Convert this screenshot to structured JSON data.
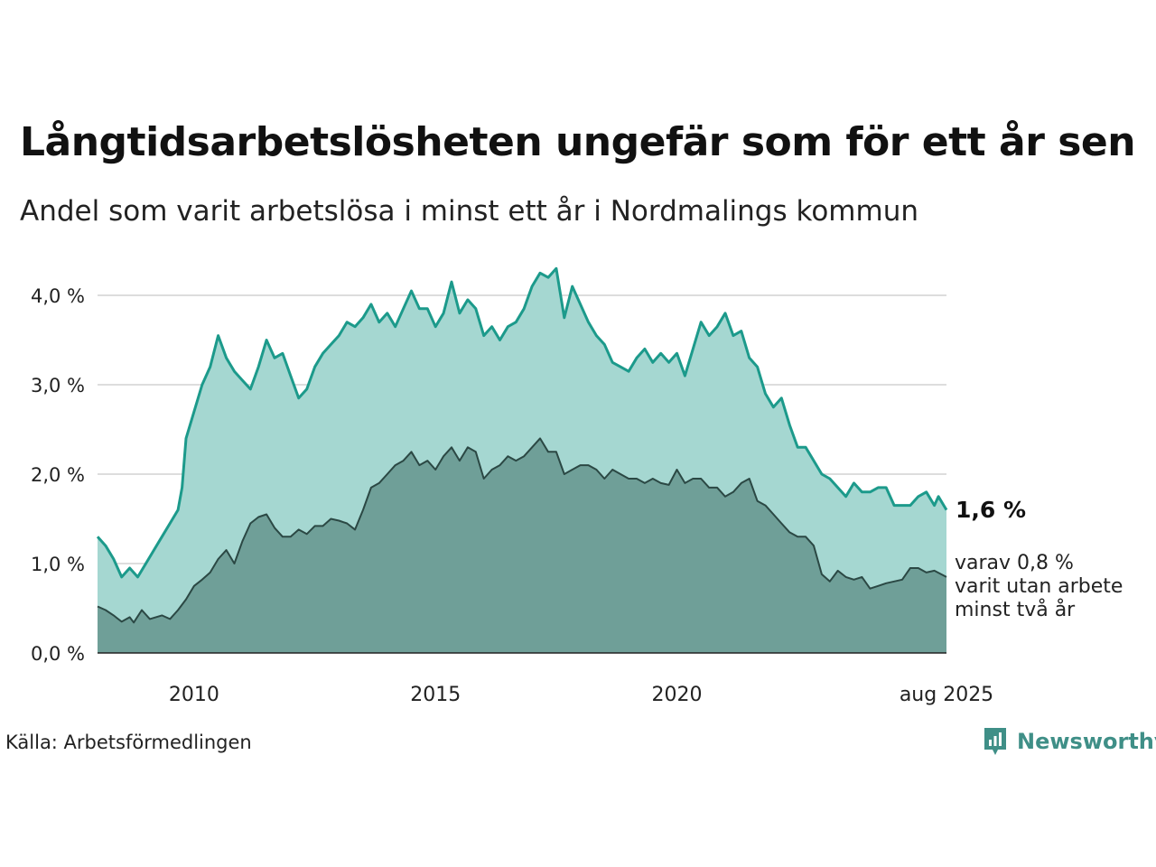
{
  "title": "Långtidsarbetslösheten ungefär som för ett år sen",
  "subtitle": "Andel som varit arbetslösa i minst ett år i Nordmalings kommun",
  "source": "Källa: Arbetsförmedlingen",
  "brand": "Newsworthy",
  "colors": {
    "area_light": "#a5d7d1",
    "line_light": "#1c9a8b",
    "area_dark": "#6f9f98",
    "line_dark": "#2b4844",
    "grid": "#dddddd"
  },
  "chart_data": {
    "type": "area",
    "x_unit": "date",
    "x_range": [
      "2008-01",
      "2025-08"
    ],
    "ylim": [
      0,
      4.3
    ],
    "yticks": [
      0,
      1,
      2,
      3,
      4
    ],
    "ytick_labels": [
      "0,0 %",
      "1,0 %",
      "2,0 %",
      "3,0 %",
      "4,0 %"
    ],
    "xticks": [
      {
        "date": "2010-01",
        "label": "2010"
      },
      {
        "date": "2015-01",
        "label": "2015"
      },
      {
        "date": "2020-01",
        "label": "2020"
      },
      {
        "date": "2025-08",
        "label": "aug 2025"
      }
    ],
    "grid": true,
    "end_label": "1,6 %",
    "end_note": [
      "varav 0,8 %",
      "varit utan arbete",
      "minst två år"
    ],
    "series": [
      {
        "key": "min1yr",
        "points": [
          [
            "2008-01",
            1.3
          ],
          [
            "2008-03",
            1.2
          ],
          [
            "2008-05",
            1.05
          ],
          [
            "2008-07",
            0.85
          ],
          [
            "2008-09",
            0.95
          ],
          [
            "2008-11",
            0.85
          ],
          [
            "2009-01",
            1.0
          ],
          [
            "2009-03",
            1.15
          ],
          [
            "2009-05",
            1.3
          ],
          [
            "2009-07",
            1.45
          ],
          [
            "2009-09",
            1.6
          ],
          [
            "2009-10",
            1.85
          ],
          [
            "2009-11",
            2.4
          ],
          [
            "2010-01",
            2.7
          ],
          [
            "2010-03",
            3.0
          ],
          [
            "2010-05",
            3.2
          ],
          [
            "2010-07",
            3.55
          ],
          [
            "2010-09",
            3.3
          ],
          [
            "2010-11",
            3.15
          ],
          [
            "2011-01",
            3.05
          ],
          [
            "2011-03",
            2.95
          ],
          [
            "2011-05",
            3.2
          ],
          [
            "2011-07",
            3.5
          ],
          [
            "2011-09",
            3.3
          ],
          [
            "2011-11",
            3.35
          ],
          [
            "2012-01",
            3.1
          ],
          [
            "2012-03",
            2.85
          ],
          [
            "2012-05",
            2.95
          ],
          [
            "2012-07",
            3.2
          ],
          [
            "2012-09",
            3.35
          ],
          [
            "2012-11",
            3.45
          ],
          [
            "2013-01",
            3.55
          ],
          [
            "2013-03",
            3.7
          ],
          [
            "2013-05",
            3.65
          ],
          [
            "2013-07",
            3.75
          ],
          [
            "2013-09",
            3.9
          ],
          [
            "2013-11",
            3.7
          ],
          [
            "2014-01",
            3.8
          ],
          [
            "2014-03",
            3.65
          ],
          [
            "2014-05",
            3.85
          ],
          [
            "2014-07",
            4.05
          ],
          [
            "2014-09",
            3.85
          ],
          [
            "2014-11",
            3.85
          ],
          [
            "2015-01",
            3.65
          ],
          [
            "2015-03",
            3.8
          ],
          [
            "2015-05",
            4.15
          ],
          [
            "2015-07",
            3.8
          ],
          [
            "2015-09",
            3.95
          ],
          [
            "2015-11",
            3.85
          ],
          [
            "2016-01",
            3.55
          ],
          [
            "2016-03",
            3.65
          ],
          [
            "2016-05",
            3.5
          ],
          [
            "2016-07",
            3.65
          ],
          [
            "2016-09",
            3.7
          ],
          [
            "2016-11",
            3.85
          ],
          [
            "2017-01",
            4.1
          ],
          [
            "2017-03",
            4.25
          ],
          [
            "2017-05",
            4.2
          ],
          [
            "2017-07",
            4.3
          ],
          [
            "2017-09",
            3.75
          ],
          [
            "2017-11",
            4.1
          ],
          [
            "2018-01",
            3.9
          ],
          [
            "2018-03",
            3.7
          ],
          [
            "2018-05",
            3.55
          ],
          [
            "2018-07",
            3.45
          ],
          [
            "2018-09",
            3.25
          ],
          [
            "2018-11",
            3.2
          ],
          [
            "2019-01",
            3.15
          ],
          [
            "2019-03",
            3.3
          ],
          [
            "2019-05",
            3.4
          ],
          [
            "2019-07",
            3.25
          ],
          [
            "2019-09",
            3.35
          ],
          [
            "2019-11",
            3.25
          ],
          [
            "2020-01",
            3.35
          ],
          [
            "2020-03",
            3.1
          ],
          [
            "2020-05",
            3.4
          ],
          [
            "2020-07",
            3.7
          ],
          [
            "2020-09",
            3.55
          ],
          [
            "2020-11",
            3.65
          ],
          [
            "2021-01",
            3.8
          ],
          [
            "2021-03",
            3.55
          ],
          [
            "2021-05",
            3.6
          ],
          [
            "2021-07",
            3.3
          ],
          [
            "2021-09",
            3.2
          ],
          [
            "2021-11",
            2.9
          ],
          [
            "2022-01",
            2.75
          ],
          [
            "2022-03",
            2.85
          ],
          [
            "2022-05",
            2.55
          ],
          [
            "2022-07",
            2.3
          ],
          [
            "2022-09",
            2.3
          ],
          [
            "2022-11",
            2.15
          ],
          [
            "2023-01",
            2.0
          ],
          [
            "2023-03",
            1.95
          ],
          [
            "2023-05",
            1.85
          ],
          [
            "2023-07",
            1.75
          ],
          [
            "2023-09",
            1.9
          ],
          [
            "2023-11",
            1.8
          ],
          [
            "2024-01",
            1.8
          ],
          [
            "2024-03",
            1.85
          ],
          [
            "2024-05",
            1.85
          ],
          [
            "2024-07",
            1.65
          ],
          [
            "2024-09",
            1.65
          ],
          [
            "2024-11",
            1.65
          ],
          [
            "2025-01",
            1.75
          ],
          [
            "2025-03",
            1.8
          ],
          [
            "2025-05",
            1.65
          ],
          [
            "2025-06",
            1.75
          ],
          [
            "2025-08",
            1.6
          ]
        ]
      },
      {
        "key": "min2yr",
        "points": [
          [
            "2008-01",
            0.52
          ],
          [
            "2008-03",
            0.48
          ],
          [
            "2008-05",
            0.42
          ],
          [
            "2008-07",
            0.35
          ],
          [
            "2008-09",
            0.4
          ],
          [
            "2008-10",
            0.34
          ],
          [
            "2008-12",
            0.48
          ],
          [
            "2009-02",
            0.38
          ],
          [
            "2009-05",
            0.42
          ],
          [
            "2009-07",
            0.38
          ],
          [
            "2009-09",
            0.48
          ],
          [
            "2009-11",
            0.6
          ],
          [
            "2010-01",
            0.75
          ],
          [
            "2010-03",
            0.82
          ],
          [
            "2010-05",
            0.9
          ],
          [
            "2010-07",
            1.05
          ],
          [
            "2010-09",
            1.15
          ],
          [
            "2010-11",
            1.0
          ],
          [
            "2011-01",
            1.25
          ],
          [
            "2011-03",
            1.45
          ],
          [
            "2011-05",
            1.52
          ],
          [
            "2011-07",
            1.55
          ],
          [
            "2011-09",
            1.4
          ],
          [
            "2011-11",
            1.3
          ],
          [
            "2012-01",
            1.3
          ],
          [
            "2012-03",
            1.38
          ],
          [
            "2012-05",
            1.33
          ],
          [
            "2012-07",
            1.42
          ],
          [
            "2012-09",
            1.42
          ],
          [
            "2012-11",
            1.5
          ],
          [
            "2013-01",
            1.48
          ],
          [
            "2013-03",
            1.45
          ],
          [
            "2013-05",
            1.38
          ],
          [
            "2013-07",
            1.6
          ],
          [
            "2013-09",
            1.85
          ],
          [
            "2013-11",
            1.9
          ],
          [
            "2014-01",
            2.0
          ],
          [
            "2014-03",
            2.1
          ],
          [
            "2014-05",
            2.15
          ],
          [
            "2014-07",
            2.25
          ],
          [
            "2014-09",
            2.1
          ],
          [
            "2014-11",
            2.15
          ],
          [
            "2015-01",
            2.05
          ],
          [
            "2015-03",
            2.2
          ],
          [
            "2015-05",
            2.3
          ],
          [
            "2015-07",
            2.15
          ],
          [
            "2015-09",
            2.3
          ],
          [
            "2015-11",
            2.25
          ],
          [
            "2016-01",
            1.95
          ],
          [
            "2016-03",
            2.05
          ],
          [
            "2016-05",
            2.1
          ],
          [
            "2016-07",
            2.2
          ],
          [
            "2016-09",
            2.15
          ],
          [
            "2016-11",
            2.2
          ],
          [
            "2017-01",
            2.3
          ],
          [
            "2017-03",
            2.4
          ],
          [
            "2017-05",
            2.25
          ],
          [
            "2017-07",
            2.25
          ],
          [
            "2017-09",
            2.0
          ],
          [
            "2017-11",
            2.05
          ],
          [
            "2018-01",
            2.1
          ],
          [
            "2018-03",
            2.1
          ],
          [
            "2018-05",
            2.05
          ],
          [
            "2018-07",
            1.95
          ],
          [
            "2018-09",
            2.05
          ],
          [
            "2018-11",
            2.0
          ],
          [
            "2019-01",
            1.95
          ],
          [
            "2019-03",
            1.95
          ],
          [
            "2019-05",
            1.9
          ],
          [
            "2019-07",
            1.95
          ],
          [
            "2019-09",
            1.9
          ],
          [
            "2019-11",
            1.88
          ],
          [
            "2020-01",
            2.05
          ],
          [
            "2020-03",
            1.9
          ],
          [
            "2020-05",
            1.95
          ],
          [
            "2020-07",
            1.95
          ],
          [
            "2020-09",
            1.85
          ],
          [
            "2020-11",
            1.85
          ],
          [
            "2021-01",
            1.75
          ],
          [
            "2021-03",
            1.8
          ],
          [
            "2021-05",
            1.9
          ],
          [
            "2021-07",
            1.95
          ],
          [
            "2021-09",
            1.7
          ],
          [
            "2021-11",
            1.65
          ],
          [
            "2022-01",
            1.55
          ],
          [
            "2022-03",
            1.45
          ],
          [
            "2022-05",
            1.35
          ],
          [
            "2022-07",
            1.3
          ],
          [
            "2022-09",
            1.3
          ],
          [
            "2022-11",
            1.2
          ],
          [
            "2023-01",
            0.88
          ],
          [
            "2023-03",
            0.8
          ],
          [
            "2023-05",
            0.92
          ],
          [
            "2023-07",
            0.85
          ],
          [
            "2023-09",
            0.82
          ],
          [
            "2023-11",
            0.85
          ],
          [
            "2024-01",
            0.72
          ],
          [
            "2024-03",
            0.75
          ],
          [
            "2024-05",
            0.78
          ],
          [
            "2024-07",
            0.8
          ],
          [
            "2024-09",
            0.82
          ],
          [
            "2024-11",
            0.95
          ],
          [
            "2025-01",
            0.95
          ],
          [
            "2025-03",
            0.9
          ],
          [
            "2025-05",
            0.92
          ],
          [
            "2025-08",
            0.85
          ]
        ]
      }
    ]
  }
}
